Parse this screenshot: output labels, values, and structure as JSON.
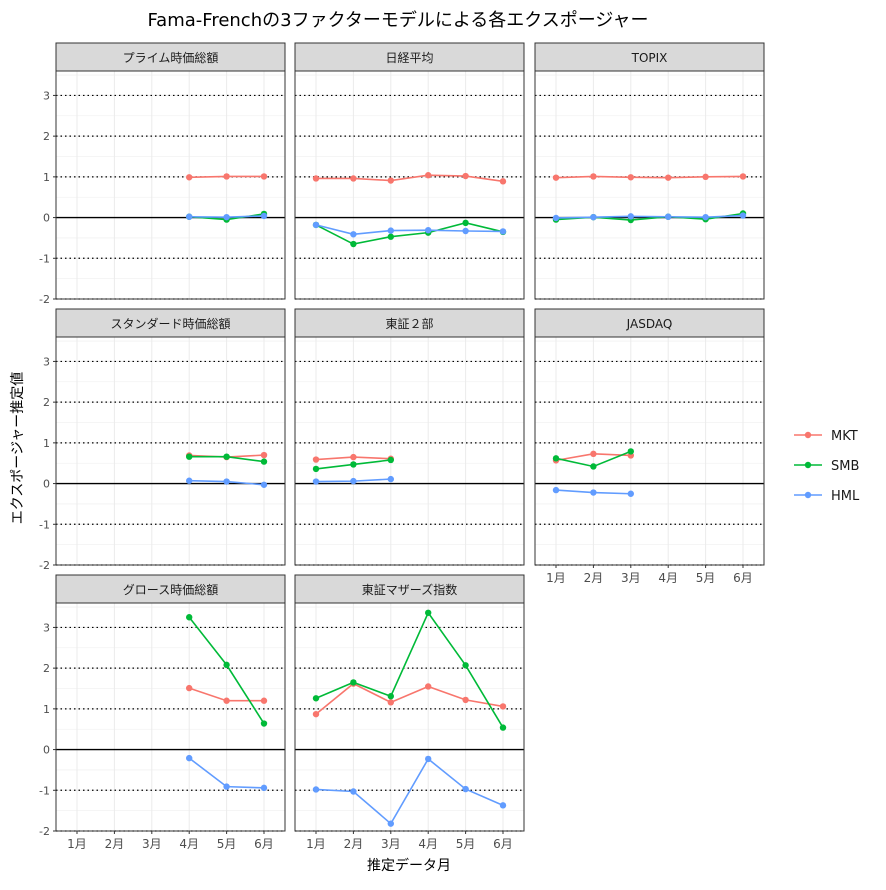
{
  "title": "Fama-Frenchの3ファクターモデルによる各エクスポージャー",
  "colors": {
    "MKT": "#F8766D",
    "SMB": "#00BA38",
    "HML": "#619CFF"
  },
  "chart_data": {
    "type": "line",
    "title": "Fama-Frenchの3ファクターモデルによる各エクスポージャー",
    "xlabel": "推定データ月",
    "ylabel": "エクスポージャー推定値",
    "categories": [
      "1月",
      "2月",
      "3月",
      "4月",
      "5月",
      "6月"
    ],
    "ylim": [
      -2,
      3.6
    ],
    "yticks": [
      -2,
      -1,
      0,
      1,
      2,
      3
    ],
    "dotted_reference_lines": [
      -2,
      -1,
      1,
      2,
      3
    ],
    "solid_reference_line": 0,
    "grid": true,
    "legend": {
      "placement": "right",
      "entries": [
        {
          "name": "MKT",
          "color": "#F8766D"
        },
        {
          "name": "SMB",
          "color": "#00BA38"
        },
        {
          "name": "HML",
          "color": "#619CFF"
        }
      ]
    },
    "panels": [
      {
        "title": "プライム時価総額",
        "series": [
          {
            "name": "MKT",
            "values": [
              null,
              null,
              null,
              0.99,
              1.01,
              1.01
            ]
          },
          {
            "name": "SMB",
            "values": [
              null,
              null,
              null,
              0.02,
              -0.05,
              0.09
            ]
          },
          {
            "name": "HML",
            "values": [
              null,
              null,
              null,
              0.02,
              0.01,
              0.04
            ]
          }
        ]
      },
      {
        "title": "日経平均",
        "series": [
          {
            "name": "MKT",
            "values": [
              0.96,
              0.96,
              0.91,
              1.04,
              1.02,
              0.89
            ]
          },
          {
            "name": "SMB",
            "values": [
              -0.18,
              -0.65,
              -0.47,
              -0.37,
              -0.13,
              -0.35
            ]
          },
          {
            "name": "HML",
            "values": [
              -0.18,
              -0.41,
              -0.32,
              -0.31,
              -0.33,
              -0.34
            ]
          }
        ]
      },
      {
        "title": "TOPIX",
        "series": [
          {
            "name": "MKT",
            "values": [
              0.98,
              1.01,
              0.99,
              0.98,
              1.0,
              1.01
            ]
          },
          {
            "name": "SMB",
            "values": [
              -0.05,
              0.01,
              -0.06,
              0.02,
              -0.04,
              0.1
            ]
          },
          {
            "name": "HML",
            "values": [
              -0.01,
              0.01,
              0.03,
              0.02,
              0.01,
              0.05
            ]
          }
        ]
      },
      {
        "title": "スタンダード時価総額",
        "series": [
          {
            "name": "MKT",
            "values": [
              null,
              null,
              null,
              0.69,
              0.65,
              0.7
            ]
          },
          {
            "name": "SMB",
            "values": [
              null,
              null,
              null,
              0.66,
              0.66,
              0.54
            ]
          },
          {
            "name": "HML",
            "values": [
              null,
              null,
              null,
              0.07,
              0.05,
              -0.03
            ]
          }
        ]
      },
      {
        "title": "東証２部",
        "series": [
          {
            "name": "MKT",
            "values": [
              0.59,
              0.65,
              0.61,
              null,
              null,
              null
            ]
          },
          {
            "name": "SMB",
            "values": [
              0.36,
              0.47,
              0.58,
              null,
              null,
              null
            ]
          },
          {
            "name": "HML",
            "values": [
              0.05,
              0.06,
              0.11,
              null,
              null,
              null
            ]
          }
        ]
      },
      {
        "title": "JASDAQ",
        "series": [
          {
            "name": "MKT",
            "values": [
              0.57,
              0.73,
              0.69,
              null,
              null,
              null
            ]
          },
          {
            "name": "SMB",
            "values": [
              0.62,
              0.42,
              0.79,
              null,
              null,
              null
            ]
          },
          {
            "name": "HML",
            "values": [
              -0.16,
              -0.22,
              -0.25,
              null,
              null,
              null
            ]
          }
        ]
      },
      {
        "title": "グロース時価総額",
        "series": [
          {
            "name": "MKT",
            "values": [
              null,
              null,
              null,
              1.51,
              1.2,
              1.2
            ]
          },
          {
            "name": "SMB",
            "values": [
              null,
              null,
              null,
              3.25,
              2.08,
              0.64
            ]
          },
          {
            "name": "HML",
            "values": [
              null,
              null,
              null,
              -0.21,
              -0.91,
              -0.94
            ]
          }
        ]
      },
      {
        "title": "東証マザーズ指数",
        "series": [
          {
            "name": "MKT",
            "values": [
              0.87,
              1.62,
              1.16,
              1.55,
              1.22,
              1.06
            ]
          },
          {
            "name": "SMB",
            "values": [
              1.26,
              1.65,
              1.31,
              3.36,
              2.07,
              0.54
            ]
          },
          {
            "name": "HML",
            "values": [
              -0.98,
              -1.03,
              -1.82,
              -0.23,
              -0.97,
              -1.37
            ]
          }
        ]
      }
    ]
  }
}
